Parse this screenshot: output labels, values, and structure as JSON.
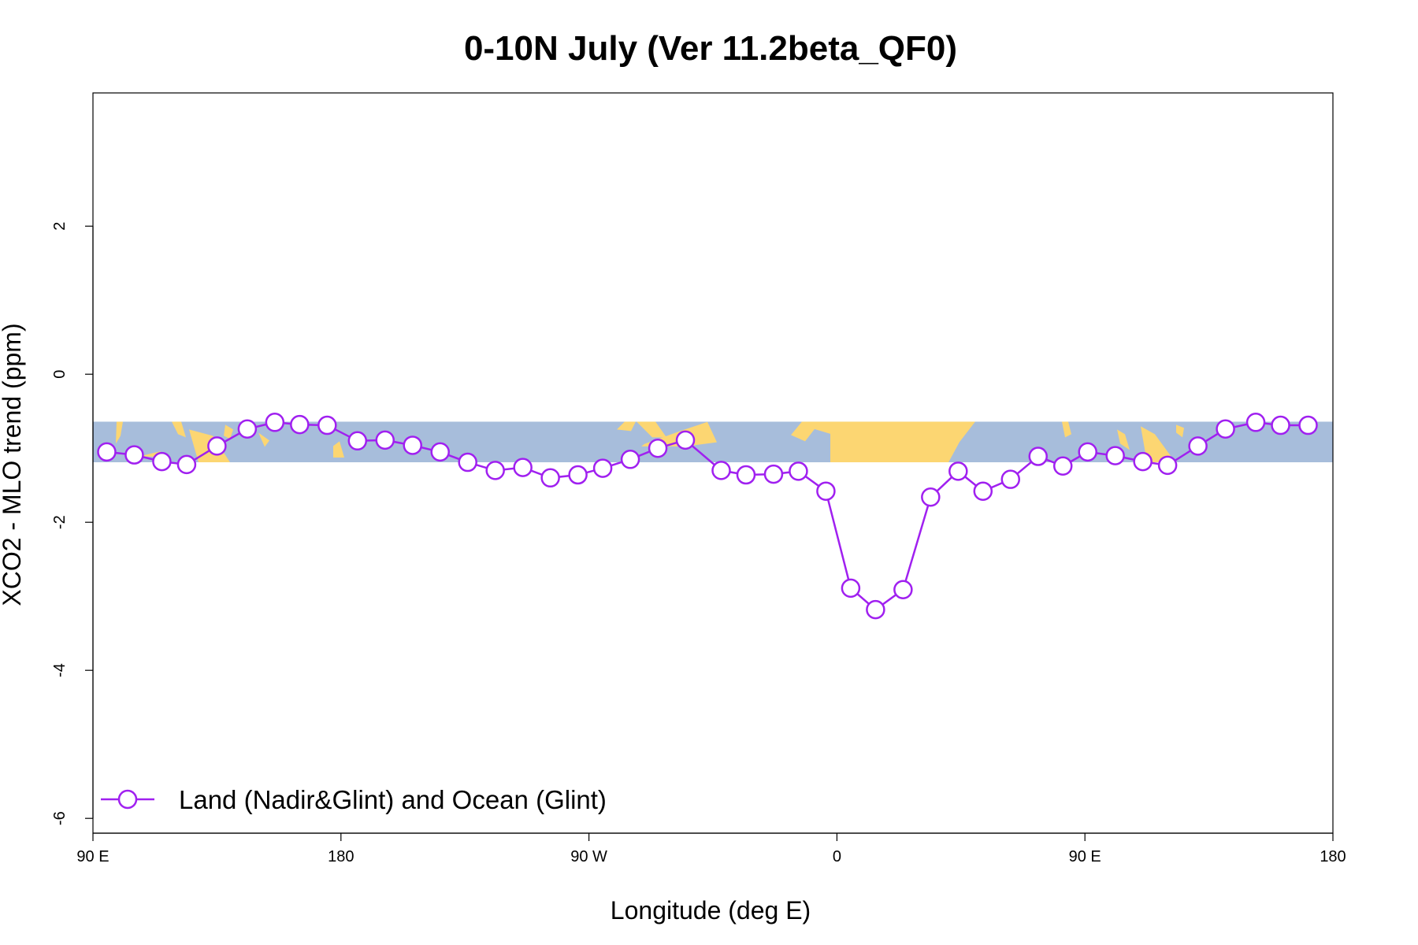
{
  "chart_data": {
    "type": "line",
    "title": "0-10N July (Ver 11.2beta_QF0)",
    "xlabel": "Longitude (deg E)",
    "ylabel": "XCO2 - MLO trend (ppm)",
    "xlim": [
      90,
      540
    ],
    "ylim": [
      -6.2,
      3.8
    ],
    "x_ticks": [
      {
        "value": 90,
        "label": "90 E"
      },
      {
        "value": 180,
        "label": "180"
      },
      {
        "value": 270,
        "label": "90 W"
      },
      {
        "value": 360,
        "label": "0"
      },
      {
        "value": 450,
        "label": "90 E"
      },
      {
        "value": 540,
        "label": "180"
      }
    ],
    "y_ticks": [
      {
        "value": 2,
        "label": "2"
      },
      {
        "value": 0,
        "label": "0"
      },
      {
        "value": -2,
        "label": "-2"
      },
      {
        "value": -4,
        "label": "-4"
      },
      {
        "value": -6,
        "label": "-6"
      }
    ],
    "map_band": {
      "y_top": -0.64,
      "y_bottom": -1.19,
      "ocean_color": "#a7bddb",
      "land_color": "#fcd672"
    },
    "series": [
      {
        "name": "Land (Nadir&Glint) and Ocean (Glint)",
        "color": "#a020f0",
        "marker": "open-circle",
        "x": [
          95,
          105,
          115,
          124,
          135,
          146,
          156,
          165,
          175,
          186,
          196,
          206,
          216,
          226,
          236,
          246,
          256,
          266,
          275,
          285,
          295,
          305,
          318,
          327,
          337,
          346,
          356,
          365,
          374,
          384,
          394,
          404,
          413,
          423,
          433,
          442,
          451,
          461,
          471,
          480,
          491,
          501,
          512,
          521,
          531
        ],
        "values": [
          -1.05,
          -1.09,
          -1.18,
          -1.22,
          -0.97,
          -0.74,
          -0.65,
          -0.68,
          -0.69,
          -0.9,
          -0.89,
          -0.96,
          -1.05,
          -1.19,
          -1.3,
          -1.26,
          -1.4,
          -1.36,
          -1.27,
          -1.15,
          -1.0,
          -0.89,
          -1.3,
          -1.36,
          -1.35,
          -1.31,
          -1.58,
          -2.89,
          -3.18,
          -2.91,
          -1.66,
          -1.31,
          -1.58,
          -1.42,
          -1.11,
          -1.24,
          -1.05,
          -1.1,
          -1.18,
          -1.23,
          -0.97,
          -0.74,
          -0.65,
          -0.69,
          -0.69
        ]
      }
    ],
    "legend": {
      "position": "bottom-left",
      "entries": [
        "Land (Nadir&Glint) and Ocean (Glint)"
      ]
    }
  }
}
